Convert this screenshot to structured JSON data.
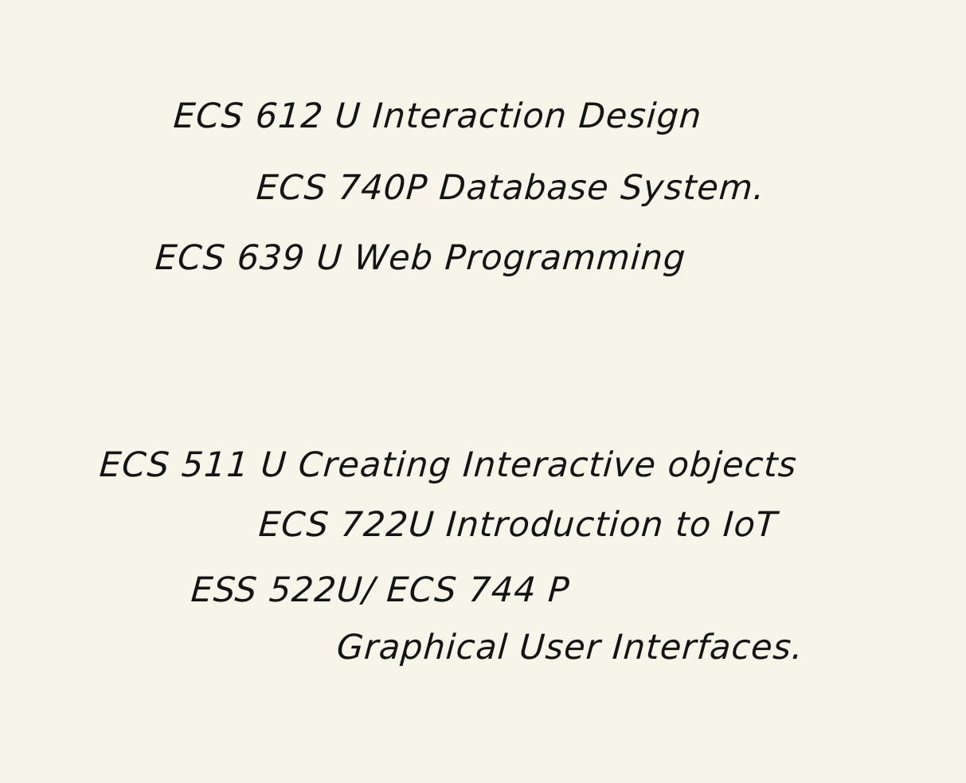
{
  "notes": {
    "group1": [
      "ECS 612 U  Interaction Design",
      "ECS  740P  Database  System.",
      "ECS  639 U  Web  Programming"
    ],
    "group2": [
      "ECS 511 U  Creating Interactive objects",
      "ECS  722U  Introduction to IoT",
      "ESS 522U/ ECS 744 P",
      "Graphical User Interfaces."
    ]
  },
  "colors": {
    "paper": "#f7f5ea",
    "ink": "#141414"
  }
}
